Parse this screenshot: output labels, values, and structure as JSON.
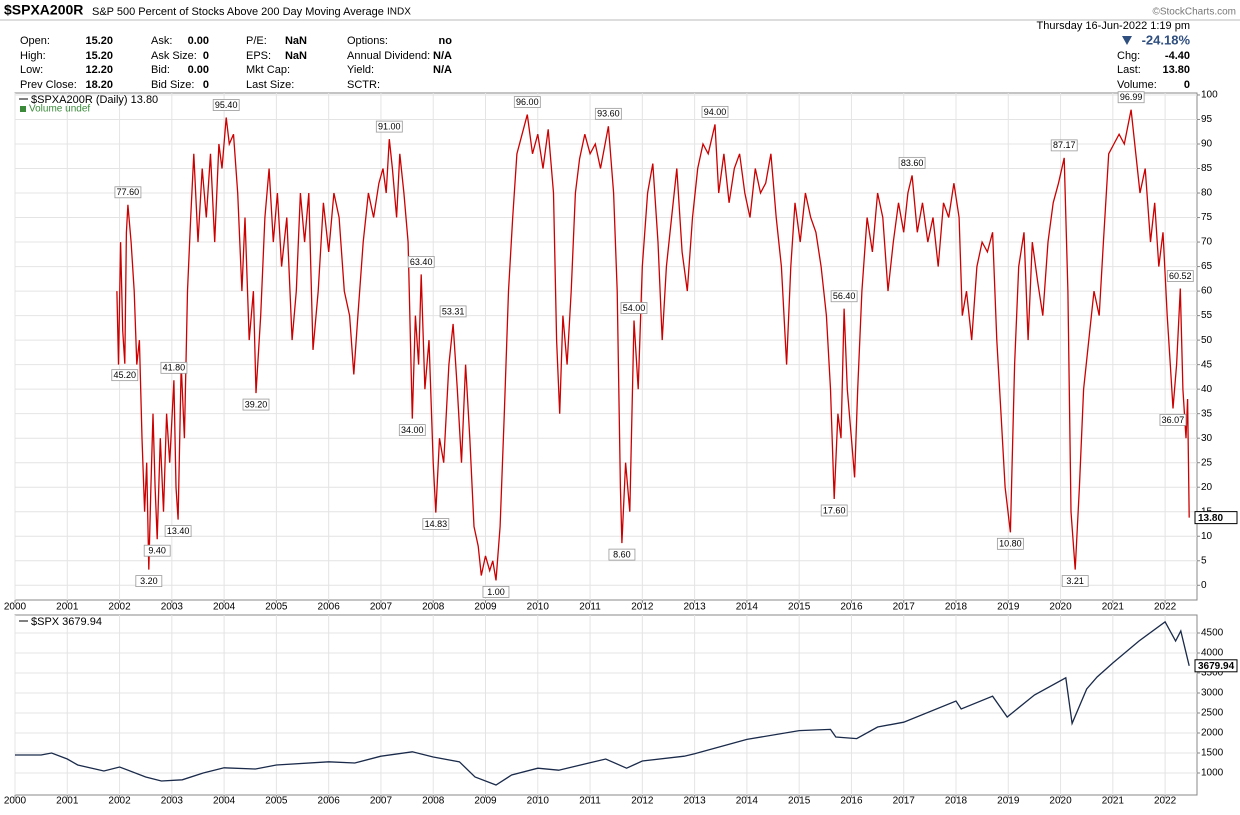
{
  "header": {
    "symbol": "$SPXA200R",
    "description": "S&P 500 Percent of Stocks Above 200 Day Moving Average",
    "exchange": "INDX",
    "copyright": "©StockCharts.com",
    "datetime": "Thursday  16-Jun-2022  1:19 pm",
    "change_pct": "-24.18%"
  },
  "quote": {
    "columns": [
      [
        {
          "label": "Open:",
          "value": "15.20"
        },
        {
          "label": "High:",
          "value": "15.20"
        },
        {
          "label": "Low:",
          "value": "12.20"
        },
        {
          "label": "Prev Close:",
          "value": "18.20"
        }
      ],
      [
        {
          "label": "Ask:",
          "value": "0.00"
        },
        {
          "label": "Ask Size:",
          "value": "0"
        },
        {
          "label": "Bid:",
          "value": "0.00"
        },
        {
          "label": "Bid Size:",
          "value": "0"
        }
      ],
      [
        {
          "label": "P/E:",
          "value": "NaN"
        },
        {
          "label": "EPS:",
          "value": "NaN"
        },
        {
          "label": "Mkt Cap:"
        },
        {
          "label": "Last Size:"
        }
      ],
      [
        {
          "label": "Options:",
          "value": "no"
        },
        {
          "label": "Annual Dividend:",
          "value": "N/A"
        },
        {
          "label": "Yield:",
          "value": "N/A"
        },
        {
          "label": "SCTR:"
        }
      ]
    ],
    "right": [
      {
        "label": "Chg:",
        "value": "-4.40"
      },
      {
        "label": "Last:",
        "value": "13.80"
      },
      {
        "label": "Volume:",
        "value": "0"
      }
    ]
  },
  "chart_data": [
    {
      "type": "line",
      "legend": "$SPXA200R (Daily) 13.80",
      "volume_legend": "Volume undef",
      "color": "#cc0000",
      "grid": true,
      "xlim": [
        2000,
        2022.61
      ],
      "ylim": [
        -3,
        100.4
      ],
      "xticks": [
        2000,
        2001,
        2002,
        2003,
        2004,
        2005,
        2006,
        2007,
        2008,
        2009,
        2010,
        2011,
        2012,
        2013,
        2014,
        2015,
        2016,
        2017,
        2018,
        2019,
        2020,
        2021,
        2022
      ],
      "yticks": [
        0,
        5,
        10,
        15,
        20,
        25,
        30,
        35,
        40,
        45,
        50,
        55,
        60,
        65,
        70,
        75,
        80,
        85,
        90,
        95,
        100
      ],
      "x": [
        2001.95,
        2001.98,
        2002.02,
        2002.06,
        2002.1,
        2002.13,
        2002.16,
        2002.22,
        2002.28,
        2002.33,
        2002.38,
        2002.43,
        2002.48,
        2002.52,
        2002.56,
        2002.6,
        2002.64,
        2002.68,
        2002.72,
        2002.78,
        2002.84,
        2002.9,
        2002.96,
        2003.04,
        2003.08,
        2003.12,
        2003.18,
        2003.24,
        2003.3,
        2003.36,
        2003.42,
        2003.5,
        2003.58,
        2003.66,
        2003.74,
        2003.82,
        2003.9,
        2003.96,
        2004.04,
        2004.1,
        2004.18,
        2004.26,
        2004.34,
        2004.4,
        2004.48,
        2004.56,
        2004.61,
        2004.7,
        2004.78,
        2004.86,
        2004.94,
        2005.02,
        2005.1,
        2005.2,
        2005.3,
        2005.38,
        2005.46,
        2005.54,
        2005.62,
        2005.7,
        2005.8,
        2005.9,
        2006.0,
        2006.1,
        2006.2,
        2006.3,
        2006.4,
        2006.48,
        2006.56,
        2006.66,
        2006.76,
        2006.86,
        2006.96,
        2007.04,
        2007.1,
        2007.16,
        2007.22,
        2007.3,
        2007.36,
        2007.44,
        2007.52,
        2007.6,
        2007.66,
        2007.72,
        2007.77,
        2007.84,
        2007.92,
        2008.0,
        2008.05,
        2008.12,
        2008.2,
        2008.3,
        2008.38,
        2008.46,
        2008.54,
        2008.62,
        2008.7,
        2008.78,
        2008.86,
        2008.92,
        2009.0,
        2009.08,
        2009.14,
        2009.2,
        2009.28,
        2009.36,
        2009.44,
        2009.52,
        2009.6,
        2009.7,
        2009.8,
        2009.9,
        2010.0,
        2010.1,
        2010.2,
        2010.3,
        2010.36,
        2010.42,
        2010.48,
        2010.56,
        2010.64,
        2010.72,
        2010.8,
        2010.9,
        2011.0,
        2011.1,
        2011.2,
        2011.35,
        2011.45,
        2011.52,
        2011.58,
        2011.61,
        2011.68,
        2011.76,
        2011.84,
        2011.92,
        2012.0,
        2012.1,
        2012.2,
        2012.3,
        2012.38,
        2012.46,
        2012.56,
        2012.66,
        2012.76,
        2012.86,
        2012.96,
        2013.06,
        2013.16,
        2013.26,
        2013.39,
        2013.46,
        2013.56,
        2013.66,
        2013.76,
        2013.86,
        2013.96,
        2014.06,
        2014.16,
        2014.26,
        2014.36,
        2014.46,
        2014.56,
        2014.66,
        2014.76,
        2014.84,
        2014.92,
        2015.02,
        2015.12,
        2015.22,
        2015.32,
        2015.42,
        2015.52,
        2015.6,
        2015.67,
        2015.74,
        2015.8,
        2015.86,
        2015.92,
        2016.0,
        2016.06,
        2016.12,
        2016.2,
        2016.3,
        2016.4,
        2016.5,
        2016.6,
        2016.7,
        2016.8,
        2016.9,
        2017.0,
        2017.08,
        2017.16,
        2017.26,
        2017.36,
        2017.46,
        2017.56,
        2017.66,
        2017.76,
        2017.86,
        2017.96,
        2018.06,
        2018.12,
        2018.2,
        2018.3,
        2018.4,
        2018.5,
        2018.6,
        2018.7,
        2018.78,
        2018.86,
        2018.94,
        2019.04,
        2019.12,
        2019.2,
        2019.3,
        2019.38,
        2019.46,
        2019.56,
        2019.66,
        2019.76,
        2019.86,
        2019.96,
        2020.07,
        2020.14,
        2020.2,
        2020.28,
        2020.36,
        2020.44,
        2020.54,
        2020.64,
        2020.74,
        2020.82,
        2020.92,
        2021.02,
        2021.12,
        2021.22,
        2021.35,
        2021.44,
        2021.52,
        2021.62,
        2021.72,
        2021.8,
        2021.88,
        2021.96,
        2022.04,
        2022.1,
        2022.15,
        2022.22,
        2022.29,
        2022.34,
        2022.4,
        2022.43,
        2022.46
      ],
      "values": [
        60,
        45,
        70,
        52,
        45.2,
        72,
        77.6,
        70,
        60,
        45,
        50,
        30,
        15,
        25,
        3.2,
        20,
        35,
        20,
        9.4,
        30,
        15,
        35,
        25,
        41.8,
        20,
        13.4,
        45,
        30,
        60,
        75,
        88,
        70,
        85,
        75,
        88,
        70,
        90,
        85,
        95.4,
        90,
        92,
        80,
        60,
        75,
        50,
        60,
        39.2,
        55,
        75,
        85,
        70,
        80,
        65,
        75,
        50,
        60,
        80,
        70,
        80,
        48,
        60,
        78,
        68,
        80,
        75,
        60,
        55,
        43,
        55,
        70,
        80,
        75,
        82,
        85,
        80,
        91,
        85,
        75,
        88,
        80,
        70,
        34,
        55,
        45,
        63.4,
        40,
        50,
        25,
        14.83,
        30,
        25,
        45,
        53.31,
        40,
        25,
        45,
        30,
        12,
        8,
        2,
        6,
        3,
        5,
        1.0,
        12,
        35,
        60,
        75,
        88,
        92,
        96,
        88,
        92,
        85,
        93,
        80,
        50,
        35,
        55,
        45,
        60,
        80,
        87,
        92,
        88,
        90,
        85,
        93.6,
        80,
        60,
        20,
        8.6,
        25,
        15,
        54,
        40,
        65,
        80,
        86,
        70,
        50,
        65,
        75,
        85,
        68,
        60,
        75,
        85,
        90,
        88,
        94,
        80,
        88,
        78,
        85,
        88,
        80,
        75,
        85,
        80,
        82,
        88,
        75,
        65,
        45,
        65,
        78,
        70,
        80,
        75,
        72,
        65,
        55,
        40,
        17.6,
        35,
        30,
        56.4,
        40,
        30,
        22,
        40,
        60,
        75,
        68,
        80,
        75,
        60,
        70,
        78,
        72,
        80,
        83.6,
        72,
        78,
        70,
        75,
        65,
        78,
        75,
        82,
        75,
        55,
        60,
        50,
        65,
        70,
        68,
        72,
        50,
        35,
        20,
        10.8,
        45,
        65,
        72,
        50,
        70,
        62,
        55,
        70,
        78,
        82,
        87.17,
        60,
        15,
        3.21,
        20,
        40,
        50,
        60,
        55,
        70,
        88,
        90,
        92,
        90,
        96.99,
        88,
        80,
        85,
        70,
        78,
        65,
        72,
        55,
        45,
        36.07,
        45,
        60.52,
        40,
        30,
        38,
        13.8
      ],
      "annotations": {
        "x": [
          2002.16,
          2002.1,
          2002.56,
          2002.72,
          2003.04,
          2003.12,
          2004.04,
          2004.61,
          2007.16,
          2007.6,
          2007.77,
          2008.05,
          2008.38,
          2009.2,
          2009.8,
          2011.35,
          2011.84,
          2011.61,
          2013.39,
          2015.86,
          2015.67,
          2017.16,
          2019.04,
          2020.07,
          2020.28,
          2021.35,
          2022.29,
          2022.15
        ],
        "values": [
          77.6,
          45.2,
          3.2,
          9.4,
          41.8,
          13.4,
          95.4,
          39.2,
          91,
          34,
          63.4,
          14.83,
          53.31,
          1,
          96,
          93.6,
          54,
          8.6,
          94,
          56.4,
          17.6,
          83.6,
          10.8,
          87.17,
          3.21,
          96.99,
          60.52,
          36.07
        ],
        "value_labels": [
          "77.60",
          "45.20",
          "3.20",
          "9.40",
          "41.80",
          "13.40",
          "95.40",
          "39.20",
          "91.00",
          "34.00",
          "63.40",
          "14.83",
          "53.31",
          "1.00",
          "96.00",
          "93.60",
          "54.00",
          "8.60",
          "94.00",
          "56.40",
          "17.60",
          "83.60",
          "10.80",
          "87.17",
          "3.21",
          "96.99",
          "60.52",
          "36.07"
        ]
      },
      "last": {
        "value": 13.8,
        "label": "13.80"
      }
    },
    {
      "type": "line",
      "legend": "$SPX 3679.94",
      "color": "#1a2a4a",
      "grid": true,
      "xlim": [
        2000,
        2022.61
      ],
      "ylim": [
        450,
        4950
      ],
      "xticks": [
        2000,
        2001,
        2002,
        2003,
        2004,
        2005,
        2006,
        2007,
        2008,
        2009,
        2010,
        2011,
        2012,
        2013,
        2014,
        2015,
        2016,
        2017,
        2018,
        2019,
        2020,
        2021,
        2022
      ],
      "yticks": [
        1000,
        1500,
        2000,
        2500,
        3000,
        3500,
        4000,
        4500
      ],
      "x": [
        2000.0,
        2000.5,
        2000.7,
        2001.0,
        2001.2,
        2001.7,
        2002.0,
        2002.5,
        2002.8,
        2003.2,
        2003.6,
        2004.0,
        2004.6,
        2005.0,
        2006.0,
        2006.5,
        2007.0,
        2007.6,
        2008.0,
        2008.5,
        2008.8,
        2009.2,
        2009.5,
        2010.0,
        2010.4,
        2011.3,
        2011.7,
        2012.0,
        2012.8,
        2013.0,
        2014.0,
        2015.0,
        2015.6,
        2015.7,
        2016.1,
        2016.5,
        2017.0,
        2018.0,
        2018.1,
        2018.7,
        2018.98,
        2019.5,
        2020.1,
        2020.22,
        2020.5,
        2020.7,
        2021.0,
        2021.5,
        2022.0,
        2022.2,
        2022.3,
        2022.46
      ],
      "values": [
        1450,
        1450,
        1500,
        1350,
        1200,
        1050,
        1150,
        900,
        800,
        830,
        1000,
        1130,
        1100,
        1200,
        1280,
        1250,
        1420,
        1530,
        1400,
        1280,
        900,
        700,
        950,
        1120,
        1070,
        1350,
        1120,
        1300,
        1420,
        1480,
        1840,
        2060,
        2090,
        1900,
        1860,
        2150,
        2270,
        2800,
        2600,
        2920,
        2400,
        2950,
        3380,
        2240,
        3100,
        3400,
        3750,
        4300,
        4780,
        4300,
        4550,
        3679.94
      ],
      "last": {
        "value": 3679.94
      }
    }
  ]
}
